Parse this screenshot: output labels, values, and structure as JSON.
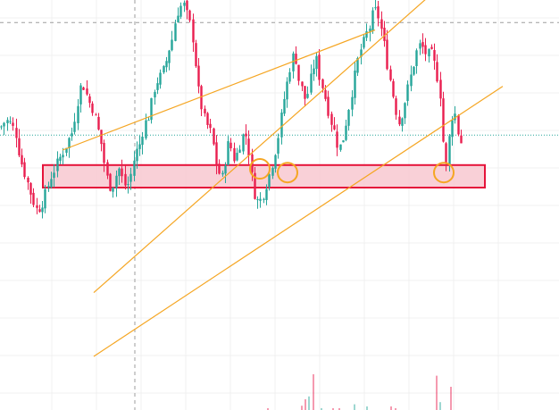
{
  "colors": {
    "up": "#26a69a",
    "down": "#e91e4f",
    "channel": "#f5a623",
    "zone_fill": "#f8c8d0",
    "zone_stroke": "#e5133a",
    "circle": "#f5a623",
    "crosshair": "#9e9e9e",
    "grid": "#f0f0f0",
    "price_line": "#26a69a"
  },
  "chart_data": {
    "type": "candlestick",
    "title": "",
    "xlabel": "",
    "ylabel": "",
    "tick_labels_visible": false,
    "ylim": [
      0,
      100
    ],
    "grid": true,
    "close_path": [
      [
        0,
        66
      ],
      [
        6,
        68
      ],
      [
        12,
        67
      ],
      [
        18,
        64
      ],
      [
        22,
        58
      ],
      [
        26,
        55
      ],
      [
        31,
        51
      ],
      [
        36,
        47
      ],
      [
        41,
        44
      ],
      [
        45,
        45
      ],
      [
        49,
        47
      ],
      [
        53,
        50
      ],
      [
        57,
        53
      ],
      [
        61,
        55
      ],
      [
        65,
        57
      ],
      [
        69,
        59
      ],
      [
        73,
        61
      ],
      [
        77,
        63
      ],
      [
        81,
        65
      ],
      [
        85,
        71
      ],
      [
        89,
        76
      ],
      [
        92,
        78
      ],
      [
        95,
        76
      ],
      [
        99,
        73
      ],
      [
        104,
        71
      ],
      [
        109,
        66
      ],
      [
        113,
        62
      ],
      [
        117,
        56
      ],
      [
        121,
        51
      ],
      [
        125,
        50
      ],
      [
        129,
        53
      ],
      [
        133,
        55
      ],
      [
        137,
        52
      ],
      [
        141,
        50
      ],
      [
        145,
        52
      ],
      [
        149,
        57
      ],
      [
        153,
        60
      ],
      [
        157,
        62
      ],
      [
        161,
        67
      ],
      [
        165,
        68
      ],
      [
        169,
        72
      ],
      [
        173,
        77
      ],
      [
        177,
        79
      ],
      [
        181,
        80
      ],
      [
        185,
        83
      ],
      [
        189,
        87
      ],
      [
        193,
        90
      ],
      [
        197,
        96
      ],
      [
        201,
        98
      ],
      [
        205,
        99
      ],
      [
        209,
        96
      ],
      [
        213,
        93
      ],
      [
        217,
        88
      ],
      [
        221,
        77
      ],
      [
        225,
        72
      ],
      [
        229,
        68
      ],
      [
        233,
        66
      ],
      [
        237,
        64
      ],
      [
        241,
        57
      ],
      [
        245,
        54
      ],
      [
        248,
        52
      ],
      [
        251,
        56
      ],
      [
        254,
        61
      ],
      [
        257,
        62
      ],
      [
        260,
        59
      ],
      [
        263,
        57
      ],
      [
        266,
        60
      ],
      [
        270,
        63
      ],
      [
        274,
        65
      ],
      [
        278,
        60
      ],
      [
        282,
        52
      ],
      [
        286,
        47
      ],
      [
        290,
        46
      ],
      [
        294,
        48
      ],
      [
        298,
        51
      ],
      [
        302,
        54
      ],
      [
        306,
        58
      ],
      [
        310,
        62
      ],
      [
        314,
        68
      ],
      [
        318,
        74
      ],
      [
        322,
        79
      ],
      [
        326,
        84
      ],
      [
        330,
        86
      ],
      [
        334,
        79
      ],
      [
        338,
        76
      ],
      [
        342,
        73
      ],
      [
        346,
        77
      ],
      [
        350,
        82
      ],
      [
        354,
        84
      ],
      [
        358,
        79
      ],
      [
        362,
        76
      ],
      [
        366,
        72
      ],
      [
        370,
        68
      ],
      [
        374,
        65
      ],
      [
        378,
        61
      ],
      [
        382,
        61
      ],
      [
        386,
        66
      ],
      [
        390,
        71
      ],
      [
        394,
        76
      ],
      [
        398,
        81
      ],
      [
        402,
        86
      ],
      [
        406,
        88
      ],
      [
        410,
        91
      ],
      [
        414,
        93
      ],
      [
        418,
        97
      ],
      [
        422,
        97
      ],
      [
        426,
        93
      ],
      [
        430,
        88
      ],
      [
        434,
        82
      ],
      [
        438,
        77
      ],
      [
        442,
        72
      ],
      [
        446,
        67
      ],
      [
        450,
        70
      ],
      [
        454,
        74
      ],
      [
        458,
        78
      ],
      [
        462,
        82
      ],
      [
        466,
        86
      ],
      [
        470,
        88
      ],
      [
        474,
        87
      ],
      [
        478,
        85
      ],
      [
        482,
        86
      ],
      [
        486,
        83
      ],
      [
        490,
        79
      ],
      [
        494,
        73
      ],
      [
        497,
        57
      ],
      [
        499,
        55
      ],
      [
        501,
        60
      ],
      [
        504,
        66
      ],
      [
        507,
        71
      ],
      [
        510,
        69
      ],
      [
        513,
        64
      ],
      [
        516,
        62
      ]
    ],
    "annotations": [
      {
        "type": "channel_line",
        "from": [
          105,
          22
        ],
        "to": [
          490,
          103
        ]
      },
      {
        "type": "channel_line",
        "from": [
          70,
          60
        ],
        "to": [
          420,
          92
        ]
      },
      {
        "type": "channel_line",
        "from": [
          105,
          5
        ],
        "to": [
          563,
          77
        ]
      },
      {
        "type": "support_zone",
        "x": [
          48,
          543
        ],
        "y": [
          50,
          56
        ]
      },
      {
        "type": "circle_marker",
        "x": 291,
        "y": 55
      },
      {
        "type": "circle_marker",
        "x": 322,
        "y": 54
      },
      {
        "type": "circle_marker",
        "x": 497,
        "y": 54
      },
      {
        "type": "crosshair_vertical",
        "x": 151
      },
      {
        "type": "price_level_dashed",
        "y": 94
      },
      {
        "type": "last_price_dotted",
        "y": 64
      }
    ],
    "volume": [
      {
        "x": 300,
        "v": 0.02,
        "dir": "down"
      },
      {
        "x": 338,
        "v": 0.12,
        "dir": "down"
      },
      {
        "x": 342,
        "v": 0.3,
        "dir": "down"
      },
      {
        "x": 346,
        "v": 0.38,
        "dir": "up"
      },
      {
        "x": 351,
        "v": 1.0,
        "dir": "down"
      },
      {
        "x": 360,
        "v": 0.04,
        "dir": "up"
      },
      {
        "x": 373,
        "v": 0.03,
        "dir": "down"
      },
      {
        "x": 380,
        "v": 0.02,
        "dir": "down"
      },
      {
        "x": 397,
        "v": 0.16,
        "dir": "up"
      },
      {
        "x": 411,
        "v": 0.1,
        "dir": "up"
      },
      {
        "x": 438,
        "v": 0.1,
        "dir": "down"
      },
      {
        "x": 443,
        "v": 0.05,
        "dir": "down"
      },
      {
        "x": 489,
        "v": 0.96,
        "dir": "down"
      },
      {
        "x": 493,
        "v": 0.22,
        "dir": "up"
      },
      {
        "x": 505,
        "v": 0.65,
        "dir": "down"
      }
    ]
  }
}
